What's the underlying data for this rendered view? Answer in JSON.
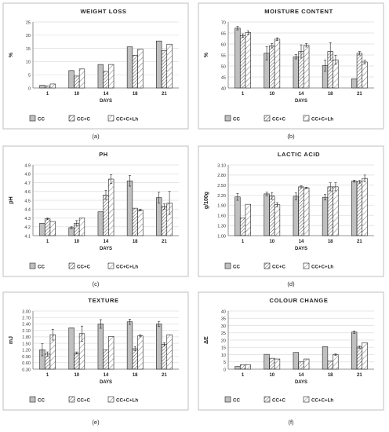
{
  "colors": {
    "cc": "#c0c0c0",
    "cc_c": "#8c8c8c",
    "cc_c_lh": "#ffffff",
    "stroke": "#222222",
    "hatch": "#444444",
    "grid": "#dddddd",
    "frame": "#bfbfbf"
  },
  "chart_data": [
    {
      "panel": "(a)",
      "type": "bar",
      "title": "WEIGHT LOSS",
      "xlabel": "DAYS",
      "ylabel": "%",
      "ylim": [
        0,
        25
      ],
      "yticks": [
        "0",
        "5",
        "10",
        "15",
        "20",
        "25"
      ],
      "grid": true,
      "legend_position": "bottom",
      "categories": [
        "1",
        "10",
        "14",
        "18",
        "21"
      ],
      "series": [
        {
          "name": "CC",
          "values": [
            1.0,
            6.6,
            8.9,
            15.6,
            17.8
          ]
        },
        {
          "name": "CC+C",
          "values": [
            0.8,
            4.5,
            6.3,
            12.4,
            14.1
          ]
        },
        {
          "name": "CC+C+Lh",
          "values": [
            1.5,
            7.2,
            8.9,
            14.7,
            16.6
          ]
        }
      ]
    },
    {
      "panel": "(b)",
      "type": "bar",
      "title": "MOISTURE CONTENT",
      "xlabel": "DAYS",
      "ylabel": "%",
      "ylim": [
        40,
        70
      ],
      "yticks": [
        "40",
        "45",
        "50",
        "55",
        "60",
        "65",
        "70"
      ],
      "grid": true,
      "legend_position": "bottom",
      "categories": [
        "1",
        "10",
        "14",
        "18",
        "21"
      ],
      "series": [
        {
          "name": "CC",
          "values": [
            67.2,
            55.8,
            54.2,
            50.2,
            44.2
          ],
          "errors": [
            0.8,
            3.0,
            1.0,
            2.5,
            0
          ]
        },
        {
          "name": "CC+C",
          "values": [
            63.8,
            59.2,
            56.6,
            56.6,
            55.8
          ],
          "errors": [
            0.8,
            1.0,
            3.0,
            4.0,
            0.8
          ]
        },
        {
          "name": "CC+C+Lh",
          "values": [
            65.2,
            62.2,
            59.4,
            52.8,
            51.8
          ],
          "errors": [
            0.8,
            0.6,
            0.8,
            2.0,
            0.8
          ]
        }
      ]
    },
    {
      "panel": "(c)",
      "type": "bar",
      "title": "PH",
      "xlabel": "DAYS",
      "ylabel": "pH",
      "ylim": [
        4.1,
        4.9
      ],
      "yticks": [
        "4.1",
        "4.2",
        "4.3",
        "4.4",
        "4.5",
        "4.6",
        "4.7",
        "4.8",
        "4.9"
      ],
      "grid": true,
      "legend_position": "bottom",
      "categories": [
        "1",
        "10",
        "14",
        "18",
        "21"
      ],
      "series": [
        {
          "name": "CC",
          "values": [
            4.24,
            4.19,
            4.37,
            4.72,
            4.53
          ],
          "errors": [
            0.0,
            0.01,
            0.0,
            0.06,
            0.06
          ]
        },
        {
          "name": "CC+C",
          "values": [
            4.29,
            4.24,
            4.56,
            4.41,
            4.43
          ],
          "errors": [
            0.01,
            0.03,
            0.05,
            0.0,
            0.03
          ]
        },
        {
          "name": "CC+C+Lh",
          "values": [
            4.26,
            4.3,
            4.74,
            4.39,
            4.47
          ],
          "errors": [
            0.0,
            0.0,
            0.05,
            0.01,
            0.13
          ]
        }
      ]
    },
    {
      "panel": "(d)",
      "type": "bar",
      "title": "LACTIC ACID",
      "xlabel": "DAYS",
      "ylabel": "g/100g",
      "ylim": [
        1.0,
        3.1
      ],
      "yticks": [
        "1.00",
        "1.30",
        "1.60",
        "1.90",
        "2.20",
        "2.50",
        "2.80",
        "3.10"
      ],
      "grid": true,
      "legend_position": "bottom",
      "categories": [
        "1",
        "10",
        "14",
        "18",
        "21"
      ],
      "series": [
        {
          "name": "CC",
          "values": [
            2.15,
            2.24,
            2.17,
            2.14,
            2.62
          ],
          "errors": [
            0.1,
            0.05,
            0.1,
            0.08,
            0.03
          ]
        },
        {
          "name": "CC+C",
          "values": [
            1.52,
            2.18,
            2.45,
            2.45,
            2.6
          ],
          "errors": [
            0,
            0.1,
            0.03,
            0.12,
            0.04
          ]
        },
        {
          "name": "CC+C+Lh",
          "values": [
            1.93,
            1.92,
            2.42,
            2.45,
            2.7
          ],
          "errors": [
            0,
            0.06,
            0.02,
            0.12,
            0.1
          ]
        }
      ]
    },
    {
      "panel": "(e)",
      "type": "bar",
      "title": "TEXTURE",
      "xlabel": "DAYS",
      "ylabel": "mJ",
      "ylim": [
        0.3,
        3.0
      ],
      "yticks": [
        "0.30",
        "0.60",
        "0.90",
        "1.20",
        "1.50",
        "1.80",
        "2.10",
        "2.40",
        "2.70",
        "3.00"
      ],
      "grid": true,
      "legend_position": "bottom",
      "categories": [
        "1",
        "10",
        "14",
        "18",
        "21"
      ],
      "series": [
        {
          "name": "CC",
          "values": [
            1.2,
            2.22,
            2.4,
            2.5,
            2.4
          ],
          "errors": [
            0.28,
            0.0,
            0.2,
            0.12,
            0.12
          ]
        },
        {
          "name": "CC+C",
          "values": [
            1.0,
            1.05,
            1.2,
            1.25,
            1.45
          ],
          "errors": [
            0.1,
            0.05,
            0.0,
            0.1,
            0.08
          ]
        },
        {
          "name": "CC+C+Lh",
          "values": [
            1.9,
            1.95,
            1.82,
            1.85,
            1.9
          ],
          "errors": [
            0.25,
            0.35,
            0.0,
            0.05,
            0.0
          ]
        }
      ]
    },
    {
      "panel": "(f)",
      "type": "bar",
      "title": "COLOUR CHANGE",
      "xlabel": "DAYS",
      "ylabel": "ΔE",
      "ylim": [
        0,
        40
      ],
      "yticks": [
        "0",
        "5",
        "10",
        "15",
        "20",
        "25",
        "30",
        "35",
        "40"
      ],
      "grid": true,
      "legend_position": "bottom",
      "categories": [
        "1",
        "10",
        "14",
        "18",
        "21"
      ],
      "series": [
        {
          "name": "CC",
          "values": [
            1.8,
            10.2,
            11.5,
            15.5,
            25.5
          ],
          "errors": [
            0,
            0,
            0,
            0,
            0.8
          ]
        },
        {
          "name": "CC+C",
          "values": [
            3.0,
            7.5,
            5.0,
            5.5,
            15.2
          ],
          "errors": [
            0,
            0,
            0,
            0,
            0.8
          ]
        },
        {
          "name": "CC+C+Lh",
          "values": [
            3.0,
            7.0,
            7.0,
            10.0,
            18.2
          ],
          "errors": [
            0,
            0,
            0,
            0.5,
            0
          ]
        }
      ]
    }
  ]
}
